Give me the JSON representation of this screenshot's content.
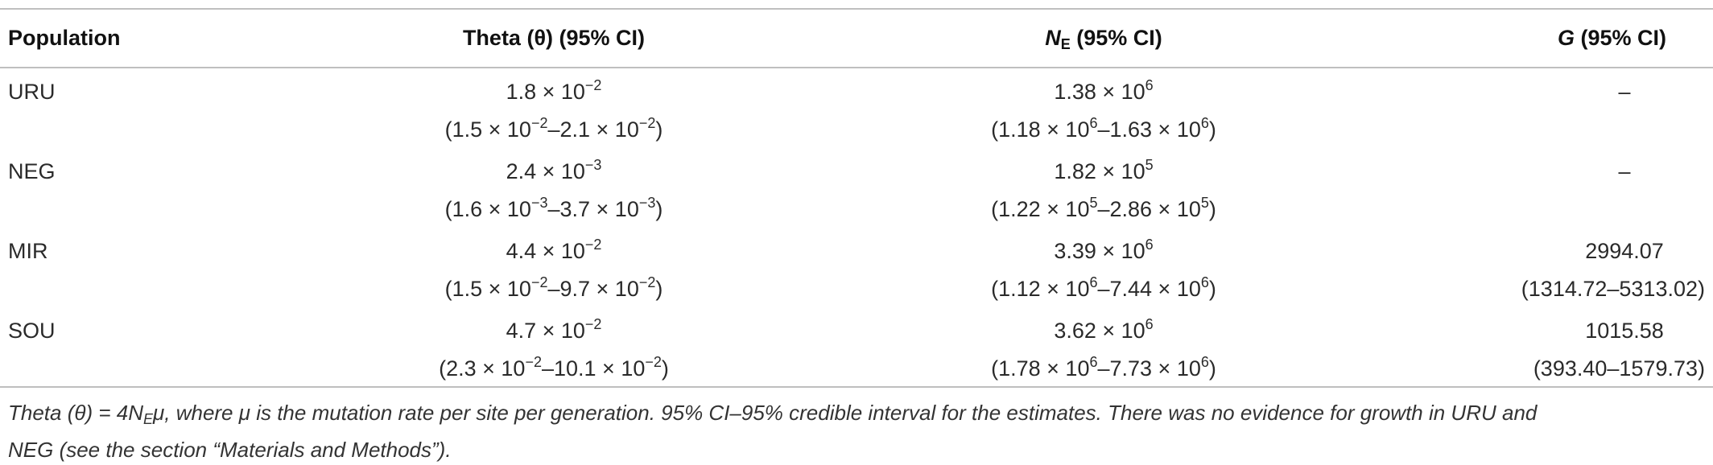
{
  "columns": {
    "population": "Population",
    "theta": "Theta (θ) (95% CI)",
    "ne_main": "N",
    "ne_sub": "E",
    "ne_rest": " (95% CI)",
    "g_main": "G",
    "g_rest": " (95% CI)"
  },
  "rows": [
    {
      "population": "URU",
      "theta": {
        "est_mant": "1.8 × 10",
        "est_exp": "−2",
        "ci_a": "(1.5 × 10",
        "ci_a_exp": "−2",
        "ci_b": "–2.1 × 10",
        "ci_b_exp": "−2",
        "ci_end": ")"
      },
      "ne": {
        "est_mant": "1.38 × 10",
        "est_exp": "6",
        "ci_a": "(1.18 × 10",
        "ci_a_exp": "6",
        "ci_b": "–1.63 × 10",
        "ci_b_exp": "6",
        "ci_end": ")"
      },
      "g": {
        "est": "–",
        "ci": ""
      }
    },
    {
      "population": "NEG",
      "theta": {
        "est_mant": "2.4 × 10",
        "est_exp": "−3",
        "ci_a": "(1.6 × 10",
        "ci_a_exp": "−3",
        "ci_b": "–3.7 × 10",
        "ci_b_exp": "−3",
        "ci_end": ")"
      },
      "ne": {
        "est_mant": "1.82 × 10",
        "est_exp": "5",
        "ci_a": "(1.22 × 10",
        "ci_a_exp": "5",
        "ci_b": "–2.86 × 10",
        "ci_b_exp": "5",
        "ci_end": ")"
      },
      "g": {
        "est": "–",
        "ci": ""
      }
    },
    {
      "population": "MIR",
      "theta": {
        "est_mant": "4.4 × 10",
        "est_exp": "−2",
        "ci_a": "(1.5 × 10",
        "ci_a_exp": "−2",
        "ci_b": "–9.7 × 10",
        "ci_b_exp": "−2",
        "ci_end": ")"
      },
      "ne": {
        "est_mant": "3.39 × 10",
        "est_exp": "6",
        "ci_a": "(1.12 × 10",
        "ci_a_exp": "6",
        "ci_b": "–7.44 × 10",
        "ci_b_exp": "6",
        "ci_end": ")"
      },
      "g": {
        "est": "2994.07",
        "ci": "(1314.72–5313.02)"
      }
    },
    {
      "population": "SOU",
      "theta": {
        "est_mant": "4.7 × 10",
        "est_exp": "−2",
        "ci_a": "(2.3 × 10",
        "ci_a_exp": "−2",
        "ci_b": "–10.1 × 10",
        "ci_b_exp": "−2",
        "ci_end": ")"
      },
      "ne": {
        "est_mant": "3.62 × 10",
        "est_exp": "6",
        "ci_a": "(1.78 × 10",
        "ci_a_exp": "6",
        "ci_b": "–7.73 × 10",
        "ci_b_exp": "6",
        "ci_end": ")"
      },
      "g": {
        "est": "1015.58",
        "ci": "(393.40–1579.73)"
      }
    }
  ],
  "footnote": {
    "p1": "Theta (θ) = 4N",
    "p1_sub": "E",
    "p2": "μ, where μ is the mutation rate per site per generation. 95% CI–95% credible interval for the estimates. There was no evidence for growth in URU and",
    "line2": "NEG (see the section “Materials and Methods”)."
  }
}
